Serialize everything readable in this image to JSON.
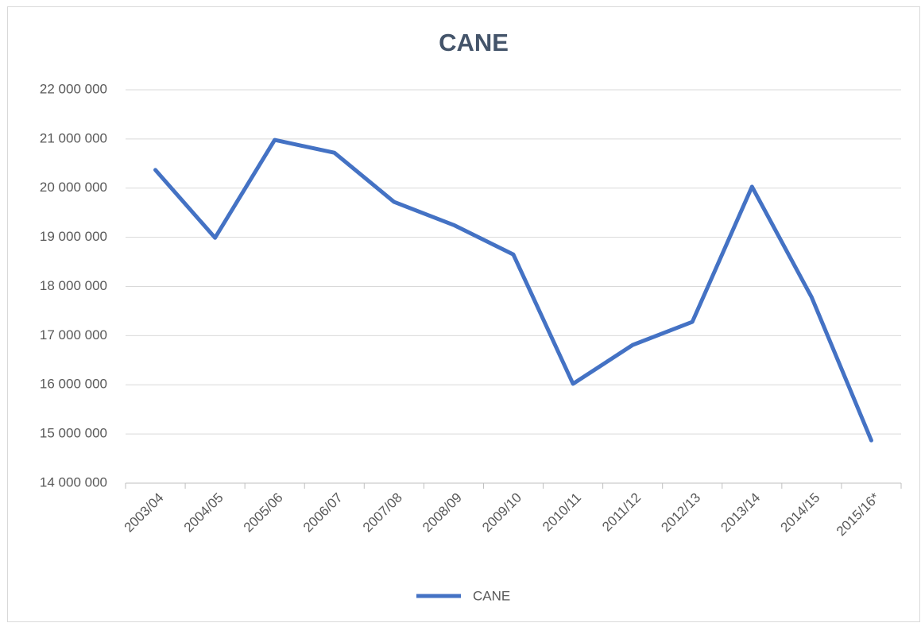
{
  "chart_data": {
    "type": "line",
    "title": "CANE",
    "categories": [
      "2003/04",
      "2004/05",
      "2005/06",
      "2006/07",
      "2007/08",
      "2008/09",
      "2009/10",
      "2010/11",
      "2011/12",
      "2012/13",
      "2013/14",
      "2014/15",
      "2015/16*"
    ],
    "series": [
      {
        "name": "CANE",
        "color": "#4472c4",
        "values": [
          20370000,
          18990000,
          20980000,
          20720000,
          19720000,
          19250000,
          18650000,
          16020000,
          16810000,
          17280000,
          20030000,
          17780000,
          14870000
        ]
      }
    ],
    "ylim": [
      14000000,
      22000000
    ],
    "yticks": [
      {
        "value": 14000000,
        "label": "14 000 000"
      },
      {
        "value": 15000000,
        "label": "15 000 000"
      },
      {
        "value": 16000000,
        "label": "16 000 000"
      },
      {
        "value": 17000000,
        "label": "17 000 000"
      },
      {
        "value": 18000000,
        "label": "18 000 000"
      },
      {
        "value": 19000000,
        "label": "19 000 000"
      },
      {
        "value": 20000000,
        "label": "20 000 000"
      },
      {
        "value": 21000000,
        "label": "21 000 000"
      },
      {
        "value": 22000000,
        "label": "22 000 000"
      }
    ],
    "grid": true,
    "legend": "bottom"
  }
}
